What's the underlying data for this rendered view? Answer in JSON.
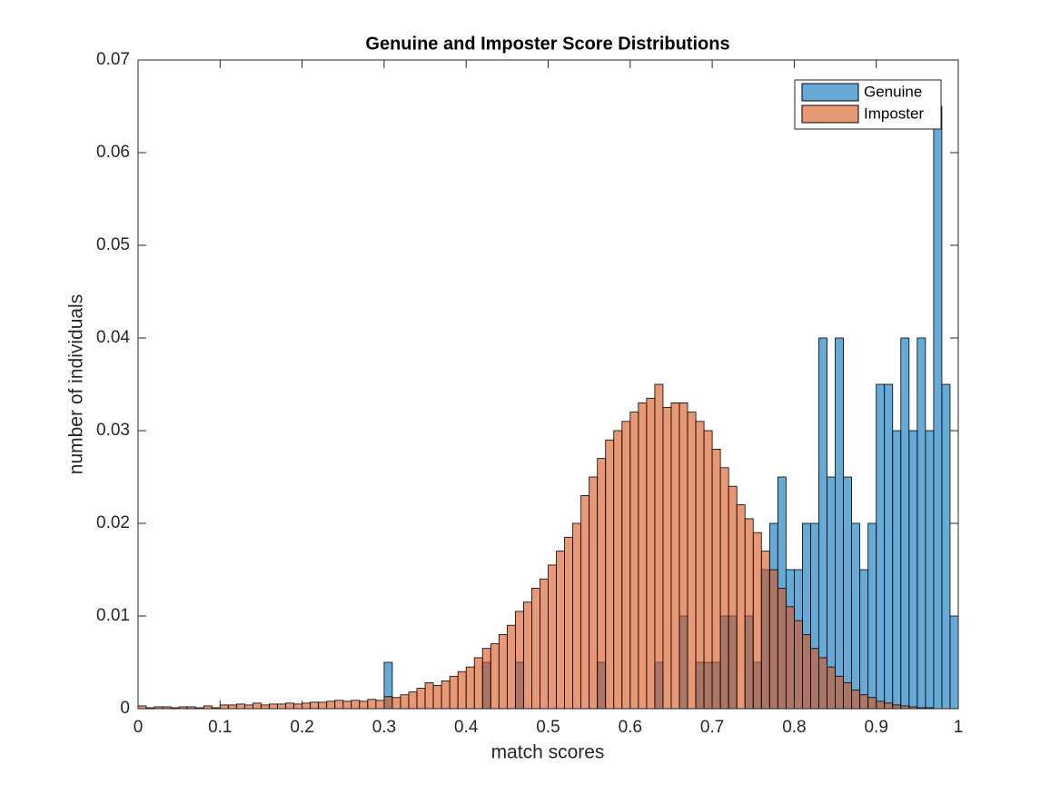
{
  "chart_data": {
    "type": "histogram",
    "title": "Genuine and Imposter Score Distributions",
    "x_label": "match scores",
    "y_label": "number of individuals",
    "bins": [
      0,
      0.01,
      0.02,
      0.03,
      0.04,
      0.05,
      0.06,
      0.07,
      0.08,
      0.09,
      0.1,
      0.11,
      0.12,
      0.13,
      0.14,
      0.15,
      0.16,
      0.17,
      0.18,
      0.19,
      0.2,
      0.21,
      0.22,
      0.23,
      0.24,
      0.25,
      0.26,
      0.27,
      0.28,
      0.29,
      0.3,
      0.31,
      0.32,
      0.33,
      0.34,
      0.35,
      0.36,
      0.37,
      0.38,
      0.39,
      0.4,
      0.41,
      0.42,
      0.43,
      0.44,
      0.45,
      0.46,
      0.47,
      0.48,
      0.49,
      0.5,
      0.51,
      0.52,
      0.53,
      0.54,
      0.55,
      0.56,
      0.57,
      0.58,
      0.59,
      0.6,
      0.61,
      0.62,
      0.63,
      0.64,
      0.65,
      0.66,
      0.67,
      0.68,
      0.69,
      0.7,
      0.71,
      0.72,
      0.73,
      0.74,
      0.75,
      0.76,
      0.77,
      0.78,
      0.79,
      0.8,
      0.81,
      0.82,
      0.83,
      0.84,
      0.85,
      0.86,
      0.87,
      0.88,
      0.89,
      0.9,
      0.91,
      0.92,
      0.93,
      0.94,
      0.95,
      0.96,
      0.97,
      0.98,
      0.99,
      1
    ],
    "series": [
      {
        "name": "Genuine",
        "color": "#0072bd",
        "values": [
          0,
          0,
          0,
          0,
          0,
          0,
          0,
          0,
          0,
          0,
          0,
          0,
          0,
          0,
          0,
          0,
          0,
          0,
          0,
          0,
          0,
          0,
          0,
          0,
          0,
          0,
          0,
          0,
          0,
          0,
          0.005,
          0,
          0,
          0,
          0,
          0,
          0,
          0,
          0,
          0,
          0,
          0,
          0.005,
          0,
          0,
          0,
          0.005,
          0,
          0,
          0,
          0,
          0,
          0,
          0,
          0,
          0,
          0.005,
          0,
          0,
          0,
          0,
          0,
          0,
          0.005,
          0,
          0,
          0.01,
          0,
          0.005,
          0.005,
          0.005,
          0.01,
          0.01,
          0,
          0.01,
          0.005,
          0.015,
          0.02,
          0.025,
          0.015,
          0.015,
          0.02,
          0.02,
          0.04,
          0.025,
          0.04,
          0.025,
          0.02,
          0.015,
          0.02,
          0.035,
          0.035,
          0.03,
          0.04,
          0.03,
          0.04,
          0.03,
          0.065,
          0.035,
          0.01
        ]
      },
      {
        "name": "Imposter",
        "color": "#d95319",
        "values": [
          0.0003,
          0.0001,
          0.0002,
          0.0002,
          0.0001,
          0.0002,
          0.0002,
          0.0001,
          0.0003,
          0.0001,
          0.0004,
          0.0004,
          0.0005,
          0.0004,
          0.0006,
          0.0004,
          0.0005,
          0.0005,
          0.0006,
          0.0005,
          0.0006,
          0.0007,
          0.0007,
          0.0008,
          0.0009,
          0.0008,
          0.0009,
          0.0008,
          0.001,
          0.0009,
          0.0013,
          0.0012,
          0.0015,
          0.0018,
          0.0022,
          0.0028,
          0.0025,
          0.003,
          0.0035,
          0.004,
          0.0045,
          0.0055,
          0.0065,
          0.007,
          0.008,
          0.009,
          0.0105,
          0.0115,
          0.013,
          0.014,
          0.0155,
          0.017,
          0.0185,
          0.02,
          0.023,
          0.025,
          0.027,
          0.029,
          0.03,
          0.031,
          0.032,
          0.033,
          0.0335,
          0.035,
          0.0325,
          0.033,
          0.033,
          0.032,
          0.031,
          0.03,
          0.028,
          0.026,
          0.024,
          0.022,
          0.0205,
          0.019,
          0.017,
          0.015,
          0.013,
          0.011,
          0.0095,
          0.008,
          0.0065,
          0.0055,
          0.0045,
          0.0035,
          0.0028,
          0.002,
          0.0015,
          0.0012,
          0.0008,
          0.0006,
          0.0004,
          0.0003,
          0.0002,
          0.0001,
          0.0001,
          0,
          0,
          0
        ]
      }
    ],
    "face_alpha": 0.6,
    "xlim": [
      0,
      1
    ],
    "xticks": [
      0,
      0.1,
      0.2,
      0.3,
      0.4,
      0.5,
      0.6,
      0.7,
      0.8,
      0.9,
      1
    ],
    "ylim": [
      0,
      0.07
    ],
    "yticks": [
      0,
      0.01,
      0.02,
      0.03,
      0.04,
      0.05,
      0.06,
      0.07
    ],
    "legend": "top-right"
  }
}
